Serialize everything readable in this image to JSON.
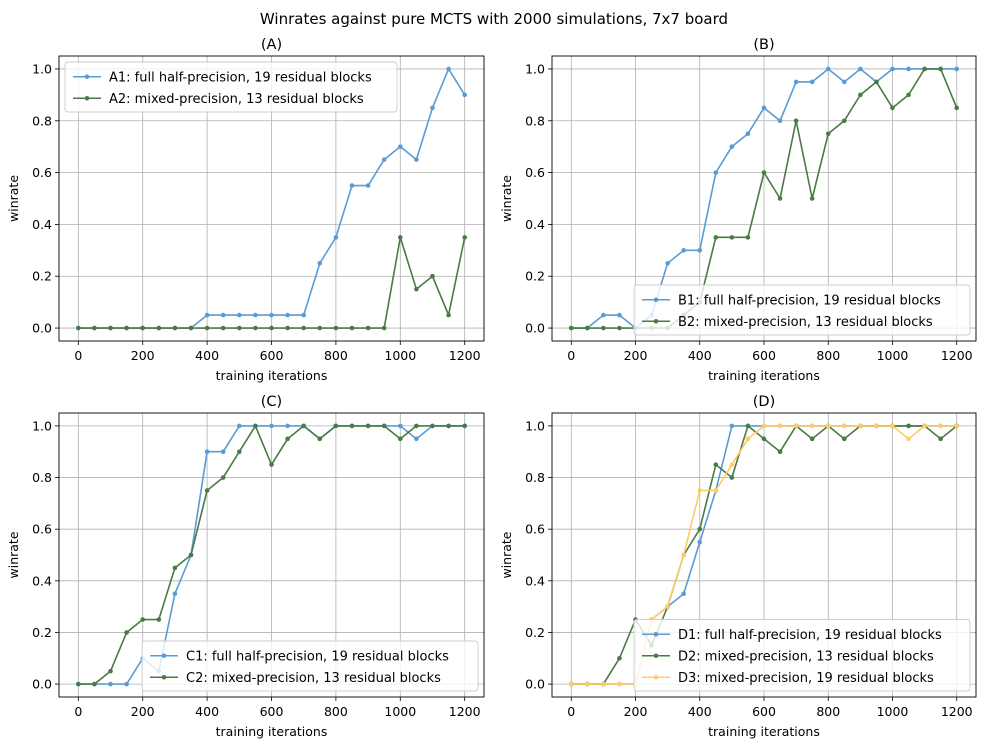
{
  "figure": {
    "title": "Winrates against pure MCTS with 2000 simulations, 7x7 board"
  },
  "chart_data": [
    {
      "type": "line",
      "title": "(A)",
      "xlabel": "training iterations",
      "ylabel": "winrate",
      "xlim": [
        -60,
        1260
      ],
      "ylim": [
        -0.05,
        1.05
      ],
      "xticks": [
        0,
        200,
        400,
        600,
        800,
        1000,
        1200
      ],
      "yticks": [
        0.0,
        0.2,
        0.4,
        0.6,
        0.8,
        1.0
      ],
      "grid": true,
      "legend": "top-left",
      "x": [
        0,
        50,
        100,
        150,
        200,
        250,
        300,
        350,
        400,
        450,
        500,
        550,
        600,
        650,
        700,
        750,
        800,
        850,
        900,
        950,
        1000,
        1050,
        1100,
        1150,
        1200
      ],
      "series": [
        {
          "name": "A1: full half-precision, 19 residual blocks",
          "color": "#5b9bd5",
          "values": [
            0,
            0,
            0,
            0,
            0,
            0,
            0,
            0,
            0.05,
            0.05,
            0.05,
            0.05,
            0.05,
            0.05,
            0.05,
            0.25,
            0.35,
            0.55,
            0.55,
            0.65,
            0.7,
            0.65,
            0.85,
            1.0,
            0.9
          ]
        },
        {
          "name": "A2: mixed-precision, 13 residual blocks",
          "color": "#4a7a45",
          "values": [
            0,
            0,
            0,
            0,
            0,
            0,
            0,
            0,
            0,
            0,
            0,
            0,
            0,
            0,
            0,
            0,
            0,
            0,
            0,
            0,
            0.35,
            0.15,
            0.2,
            0.05,
            0.35
          ]
        }
      ]
    },
    {
      "type": "line",
      "title": "(B)",
      "xlabel": "training iterations",
      "ylabel": "winrate",
      "xlim": [
        -60,
        1260
      ],
      "ylim": [
        -0.05,
        1.05
      ],
      "xticks": [
        0,
        200,
        400,
        600,
        800,
        1000,
        1200
      ],
      "yticks": [
        0.0,
        0.2,
        0.4,
        0.6,
        0.8,
        1.0
      ],
      "grid": true,
      "legend": "bottom-right",
      "x": [
        0,
        50,
        100,
        150,
        200,
        250,
        300,
        350,
        400,
        450,
        500,
        550,
        600,
        650,
        700,
        750,
        800,
        850,
        900,
        950,
        1000,
        1050,
        1100,
        1150,
        1200
      ],
      "series": [
        {
          "name": "B1: full half-precision, 19 residual blocks",
          "color": "#5b9bd5",
          "values": [
            0,
            0,
            0.05,
            0.05,
            0,
            0.05,
            0.25,
            0.3,
            0.3,
            0.6,
            0.7,
            0.75,
            0.85,
            0.8,
            0.95,
            0.95,
            1.0,
            0.95,
            1.0,
            0.95,
            1.0,
            1.0,
            1.0,
            1.0,
            1.0
          ]
        },
        {
          "name": "B2: mixed-precision, 13 residual blocks",
          "color": "#4a7a45",
          "values": [
            0,
            0,
            0,
            0,
            0,
            0,
            0,
            0.05,
            0.1,
            0.35,
            0.35,
            0.35,
            0.6,
            0.5,
            0.8,
            0.5,
            0.75,
            0.8,
            0.9,
            0.95,
            0.85,
            0.9,
            1.0,
            1.0,
            0.85
          ]
        }
      ]
    },
    {
      "type": "line",
      "title": "(C)",
      "xlabel": "training iterations",
      "ylabel": "winrate",
      "xlim": [
        -60,
        1260
      ],
      "ylim": [
        -0.05,
        1.05
      ],
      "xticks": [
        0,
        200,
        400,
        600,
        800,
        1000,
        1200
      ],
      "yticks": [
        0.0,
        0.2,
        0.4,
        0.6,
        0.8,
        1.0
      ],
      "grid": true,
      "legend": "bottom-right",
      "x": [
        0,
        50,
        100,
        150,
        200,
        250,
        300,
        350,
        400,
        450,
        500,
        550,
        600,
        650,
        700,
        750,
        800,
        850,
        900,
        950,
        1000,
        1050,
        1100,
        1150,
        1200
      ],
      "series": [
        {
          "name": "C1: full half-precision, 19 residual blocks",
          "color": "#5b9bd5",
          "values": [
            0,
            0,
            0,
            0,
            0.1,
            0.05,
            0.35,
            0.5,
            0.9,
            0.9,
            1.0,
            1.0,
            1.0,
            1.0,
            1.0,
            0.95,
            1.0,
            1.0,
            1.0,
            1.0,
            1.0,
            0.95,
            1.0,
            1.0,
            1.0
          ]
        },
        {
          "name": "C2: mixed-precision, 13 residual blocks",
          "color": "#4a7a45",
          "values": [
            0,
            0,
            0.05,
            0.2,
            0.25,
            0.25,
            0.45,
            0.5,
            0.75,
            0.8,
            0.9,
            1.0,
            0.85,
            0.95,
            1.0,
            0.95,
            1.0,
            1.0,
            1.0,
            1.0,
            0.95,
            1.0,
            1.0,
            1.0,
            1.0
          ]
        }
      ]
    },
    {
      "type": "line",
      "title": "(D)",
      "xlabel": "training iterations",
      "ylabel": "winrate",
      "xlim": [
        -60,
        1260
      ],
      "ylim": [
        -0.05,
        1.05
      ],
      "xticks": [
        0,
        200,
        400,
        600,
        800,
        1000,
        1200
      ],
      "yticks": [
        0.0,
        0.2,
        0.4,
        0.6,
        0.8,
        1.0
      ],
      "grid": true,
      "legend": "bottom-right",
      "x": [
        0,
        50,
        100,
        150,
        200,
        250,
        300,
        350,
        400,
        450,
        500,
        550,
        600,
        650,
        700,
        750,
        800,
        850,
        900,
        950,
        1000,
        1050,
        1100,
        1150,
        1200
      ],
      "series": [
        {
          "name": "D1: full half-precision, 19 residual blocks",
          "color": "#5b9bd5",
          "values": [
            0,
            0,
            0,
            0,
            0,
            0.25,
            0.3,
            0.35,
            0.55,
            0.75,
            1.0,
            1.0,
            1.0,
            1.0,
            1.0,
            1.0,
            1.0,
            1.0,
            1.0,
            1.0,
            1.0,
            1.0,
            1.0,
            1.0,
            1.0
          ]
        },
        {
          "name": "D2: mixed-precision, 13 residual blocks",
          "color": "#4a7a45",
          "values": [
            0,
            0,
            0,
            0.1,
            0.25,
            0.15,
            0.3,
            0.5,
            0.6,
            0.85,
            0.8,
            1.0,
            0.95,
            0.9,
            1.0,
            0.95,
            1.0,
            0.95,
            1.0,
            1.0,
            1.0,
            1.0,
            1.0,
            0.95,
            1.0
          ]
        },
        {
          "name": "D3: mixed-precision, 19 residual blocks",
          "color": "#ffcc66",
          "values": [
            0,
            0,
            0,
            0,
            0,
            0.25,
            0.3,
            0.5,
            0.75,
            0.75,
            0.85,
            0.95,
            1.0,
            1.0,
            1.0,
            1.0,
            1.0,
            1.0,
            1.0,
            1.0,
            1.0,
            0.95,
            1.0,
            1.0,
            1.0
          ]
        }
      ]
    }
  ]
}
